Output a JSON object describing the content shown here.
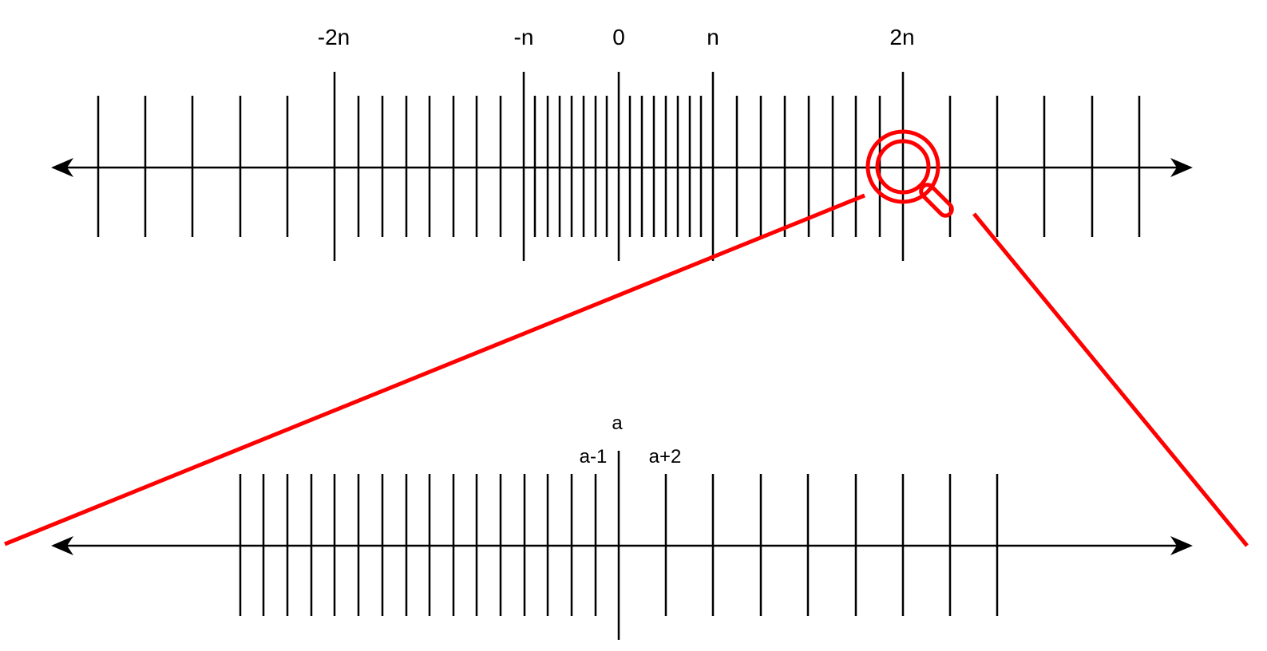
{
  "colors": {
    "line": "#000000",
    "highlight": "#ff0000",
    "background": "#ffffff"
  },
  "top_axis": {
    "labels": [
      "-2n",
      "-n",
      "0",
      "n",
      "2n"
    ]
  },
  "bottom_axis": {
    "label_a": "a",
    "label_a_minus_1": "a-1",
    "label_a_plus_2": "a+2"
  },
  "icons": {
    "magnifier": "magnifier-icon"
  }
}
